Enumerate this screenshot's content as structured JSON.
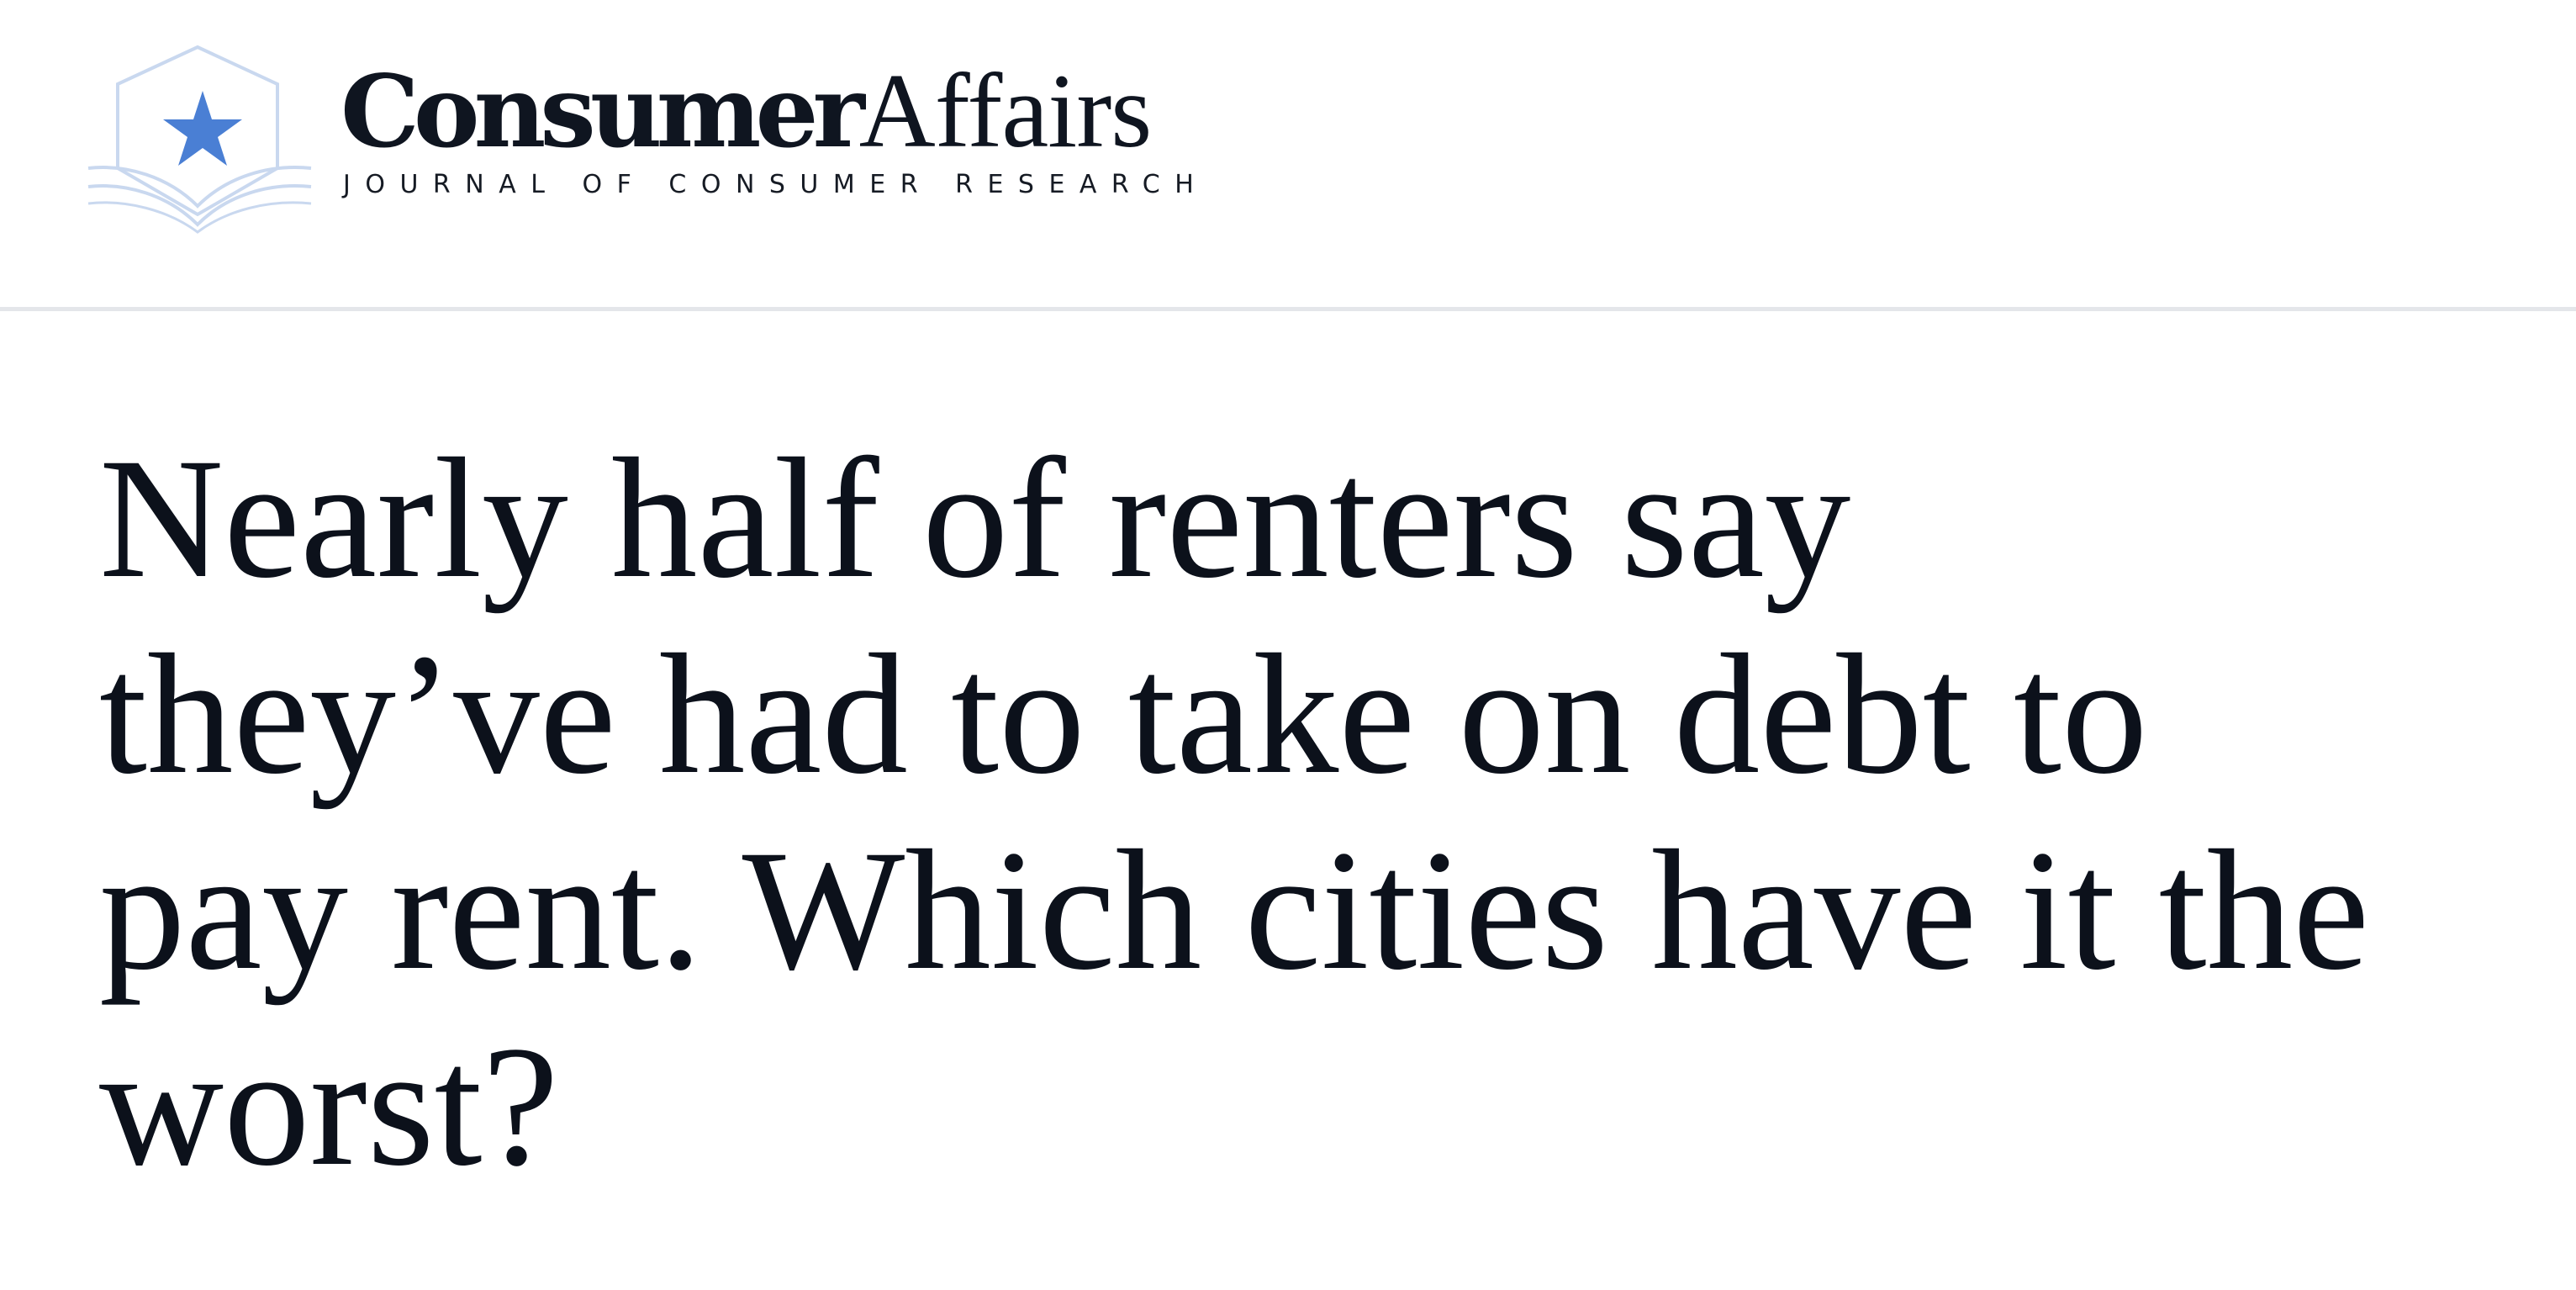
{
  "brand": {
    "name_bold": "Consumer",
    "name_light": "Affairs",
    "tagline": "JOURNAL OF CONSUMER RESEARCH",
    "logo_icon": "star-book-icon",
    "accent_color": "#4a7fd4",
    "outline_color": "#c9d8ef"
  },
  "article": {
    "headline": "Nearly half of renters say they’ve had to take on debt to pay rent. Which cities have it the worst?"
  }
}
